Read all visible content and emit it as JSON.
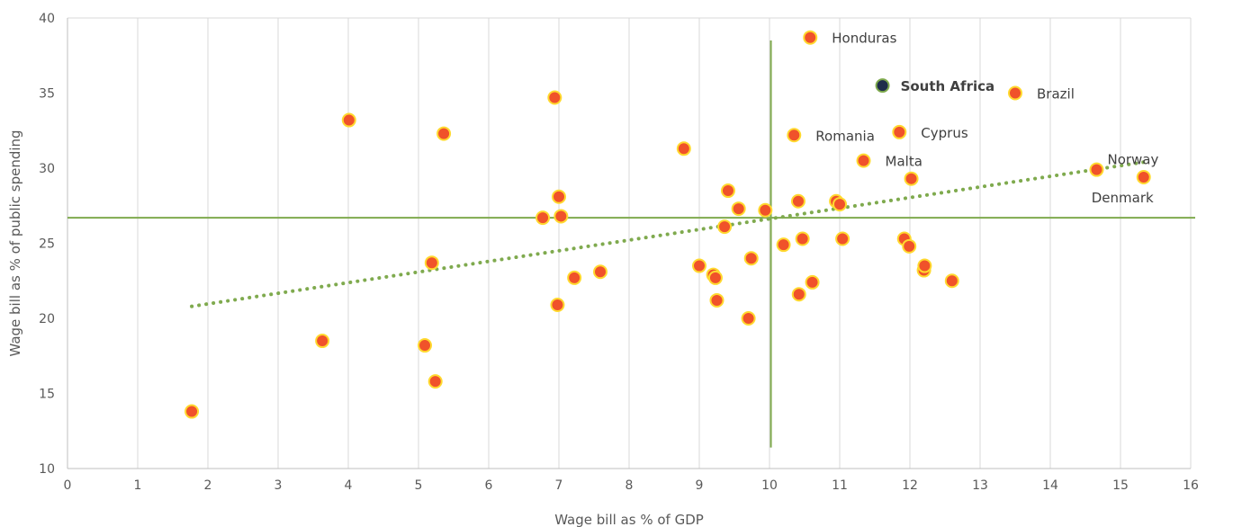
{
  "chart_data": {
    "type": "scatter",
    "xlabel": "Wage bill as % of GDP",
    "ylabel": "Wage bill as % of public spending",
    "xlim": [
      0,
      16
    ],
    "ylim": [
      10,
      40
    ],
    "x_ticks": [
      "0",
      "1",
      "2",
      "3",
      "4",
      "5",
      "6",
      "7",
      "8",
      "9",
      "10",
      "11",
      "12",
      "13",
      "14",
      "15",
      "16"
    ],
    "y_ticks": [
      "10",
      "15",
      "20",
      "25",
      "30",
      "35",
      "40"
    ],
    "grid": "vertical",
    "colors": {
      "point_fill": "#f0522a",
      "point_stroke": "#ffd92f",
      "highlight_fill": "#1f2d4a",
      "highlight_stroke": "#7faa4e",
      "reference_lines": "#7faa4e",
      "trendline": "#7faa4e",
      "grid": "#d9d9d9"
    },
    "reference_lines": {
      "x": 10.02,
      "y": 26.7
    },
    "trendline": {
      "style": "dotted",
      "x": [
        1.77,
        15.33
      ],
      "y": [
        20.8,
        30.4
      ]
    },
    "points": [
      {
        "x": 1.77,
        "y": 13.8,
        "label": ""
      },
      {
        "x": 3.63,
        "y": 18.5,
        "label": ""
      },
      {
        "x": 4.01,
        "y": 33.2,
        "label": ""
      },
      {
        "x": 5.09,
        "y": 18.2,
        "label": ""
      },
      {
        "x": 5.19,
        "y": 23.7,
        "label": ""
      },
      {
        "x": 5.24,
        "y": 15.8,
        "label": ""
      },
      {
        "x": 5.36,
        "y": 32.3,
        "label": ""
      },
      {
        "x": 6.77,
        "y": 26.7,
        "label": ""
      },
      {
        "x": 6.94,
        "y": 34.7,
        "label": ""
      },
      {
        "x": 6.98,
        "y": 20.9,
        "label": ""
      },
      {
        "x": 7.0,
        "y": 28.1,
        "label": ""
      },
      {
        "x": 7.03,
        "y": 26.8,
        "label": ""
      },
      {
        "x": 7.22,
        "y": 22.7,
        "label": ""
      },
      {
        "x": 7.59,
        "y": 23.1,
        "label": ""
      },
      {
        "x": 8.78,
        "y": 31.3,
        "label": ""
      },
      {
        "x": 9.0,
        "y": 23.5,
        "label": ""
      },
      {
        "x": 9.2,
        "y": 22.9,
        "label": ""
      },
      {
        "x": 9.23,
        "y": 22.7,
        "label": ""
      },
      {
        "x": 9.25,
        "y": 21.2,
        "label": ""
      },
      {
        "x": 9.36,
        "y": 26.1,
        "label": ""
      },
      {
        "x": 9.41,
        "y": 28.5,
        "label": ""
      },
      {
        "x": 9.56,
        "y": 27.3,
        "label": ""
      },
      {
        "x": 9.7,
        "y": 20.0,
        "label": ""
      },
      {
        "x": 9.74,
        "y": 24.0,
        "label": ""
      },
      {
        "x": 9.94,
        "y": 27.2,
        "label": ""
      },
      {
        "x": 10.2,
        "y": 24.9,
        "label": ""
      },
      {
        "x": 10.35,
        "y": 32.2,
        "label": "Romania"
      },
      {
        "x": 10.41,
        "y": 27.8,
        "label": ""
      },
      {
        "x": 10.42,
        "y": 21.6,
        "label": ""
      },
      {
        "x": 10.47,
        "y": 25.3,
        "label": ""
      },
      {
        "x": 10.58,
        "y": 38.7,
        "label": "Honduras"
      },
      {
        "x": 10.61,
        "y": 22.4,
        "label": ""
      },
      {
        "x": 10.95,
        "y": 27.8,
        "label": ""
      },
      {
        "x": 11.0,
        "y": 27.6,
        "label": ""
      },
      {
        "x": 11.04,
        "y": 25.3,
        "label": ""
      },
      {
        "x": 11.34,
        "y": 30.5,
        "label": "Malta"
      },
      {
        "x": 11.85,
        "y": 32.4,
        "label": "Cyprus"
      },
      {
        "x": 11.92,
        "y": 25.3,
        "label": ""
      },
      {
        "x": 11.99,
        "y": 24.8,
        "label": ""
      },
      {
        "x": 12.02,
        "y": 29.3,
        "label": ""
      },
      {
        "x": 12.2,
        "y": 23.2,
        "label": ""
      },
      {
        "x": 12.21,
        "y": 23.5,
        "label": ""
      },
      {
        "x": 12.6,
        "y": 22.5,
        "label": ""
      },
      {
        "x": 13.5,
        "y": 35.0,
        "label": "Brazil"
      },
      {
        "x": 14.66,
        "y": 29.9,
        "label": "Norway"
      },
      {
        "x": 15.33,
        "y": 29.4,
        "label": "Denmark"
      }
    ],
    "highlight": {
      "x": 11.61,
      "y": 35.5,
      "label": "South Africa"
    }
  }
}
